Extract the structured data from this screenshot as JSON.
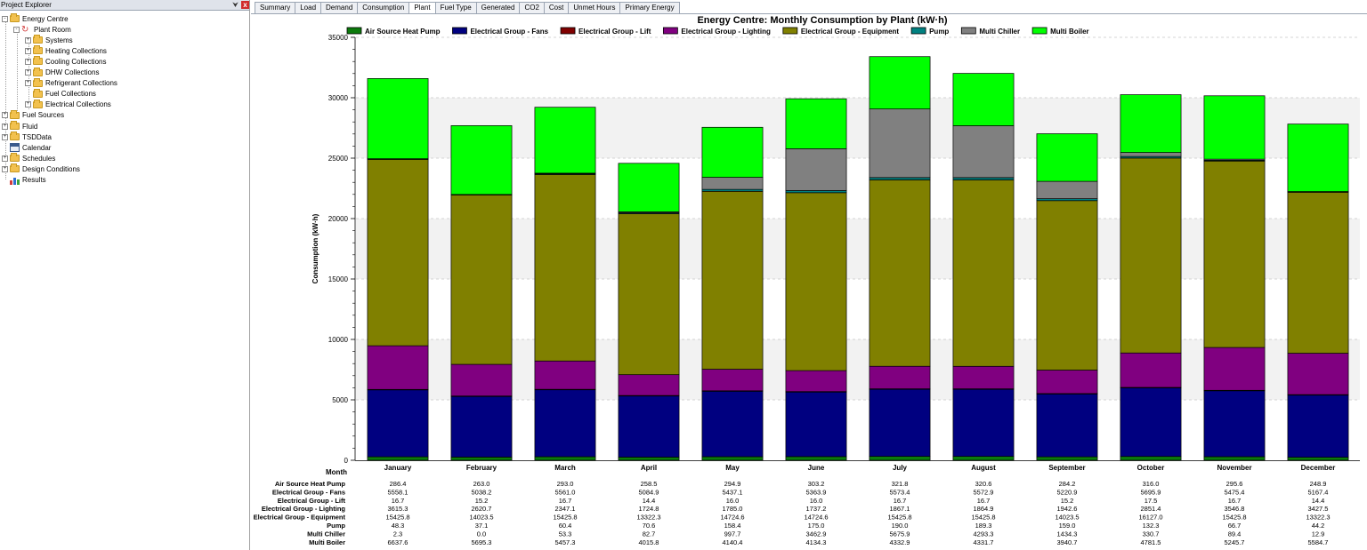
{
  "explorer": {
    "title": "Project Explorer",
    "pin_glyph": "⮟",
    "close_glyph": "x",
    "items": [
      {
        "label": "Energy Centre",
        "icon": "folder-icon",
        "depth": 0,
        "toggle": "-"
      },
      {
        "label": "Plant Room",
        "icon": "sync-icon",
        "depth": 1,
        "toggle": "-"
      },
      {
        "label": "Systems",
        "icon": "folder-icon",
        "depth": 2,
        "toggle": "+"
      },
      {
        "label": "Heating Collections",
        "icon": "folder-icon",
        "depth": 2,
        "toggle": "+"
      },
      {
        "label": "Cooling Collections",
        "icon": "folder-icon",
        "depth": 2,
        "toggle": "+"
      },
      {
        "label": "DHW Collections",
        "icon": "folder-icon",
        "depth": 2,
        "toggle": "+"
      },
      {
        "label": "Refrigerant Collections",
        "icon": "folder-icon",
        "depth": 2,
        "toggle": "+"
      },
      {
        "label": "Fuel Collections",
        "icon": "folder-icon",
        "depth": 2,
        "toggle": ""
      },
      {
        "label": "Electrical Collections",
        "icon": "folder-icon",
        "depth": 2,
        "toggle": "+"
      },
      {
        "label": "Fuel Sources",
        "icon": "folder-icon",
        "depth": 0,
        "toggle": "+"
      },
      {
        "label": "Fluid",
        "icon": "folder-icon",
        "depth": 0,
        "toggle": "+"
      },
      {
        "label": "TSDData",
        "icon": "folder-icon",
        "depth": 0,
        "toggle": "+"
      },
      {
        "label": "Calendar",
        "icon": "calendar-icon",
        "depth": 0,
        "toggle": ""
      },
      {
        "label": "Schedules",
        "icon": "folder-icon",
        "depth": 0,
        "toggle": "+"
      },
      {
        "label": "Design Conditions",
        "icon": "folder-icon",
        "depth": 0,
        "toggle": "+"
      },
      {
        "label": "Results",
        "icon": "results-icon",
        "depth": 0,
        "toggle": ""
      }
    ]
  },
  "tabs": [
    {
      "label": "Summary",
      "active": false
    },
    {
      "label": "Load",
      "active": false
    },
    {
      "label": "Demand",
      "active": false
    },
    {
      "label": "Consumption",
      "active": false
    },
    {
      "label": "Plant",
      "active": true
    },
    {
      "label": "Fuel Type",
      "active": false
    },
    {
      "label": "Generated",
      "active": false
    },
    {
      "label": "CO2",
      "active": false
    },
    {
      "label": "Cost",
      "active": false
    },
    {
      "label": "Unmet Hours",
      "active": false
    },
    {
      "label": "Primary Energy",
      "active": false
    }
  ],
  "chart_data": {
    "type": "bar",
    "stacked": true,
    "title": "Energy Centre: Monthly Consumption by Plant (kW·h)",
    "xlabel": "Month",
    "ylabel": "Consumption (kW·h)",
    "ylim": [
      0,
      35000
    ],
    "yticks": [
      0,
      5000,
      10000,
      15000,
      20000,
      25000,
      30000,
      35000
    ],
    "grid": "horizontal dashed",
    "legend": "top",
    "categories": [
      "January",
      "February",
      "March",
      "April",
      "May",
      "June",
      "July",
      "August",
      "September",
      "October",
      "November",
      "December"
    ],
    "series": [
      {
        "name": "Air Source Heat Pump",
        "color": "#0b7a0b",
        "values": [
          "286.4",
          "263.0",
          "293.0",
          "258.5",
          "294.9",
          "303.2",
          "321.8",
          "320.6",
          "284.2",
          "316.0",
          "295.6",
          "248.9"
        ]
      },
      {
        "name": "Electrical Group - Fans",
        "color": "#000080",
        "values": [
          "5558.1",
          "5038.2",
          "5561.0",
          "5084.9",
          "5437.1",
          "5363.9",
          "5573.4",
          "5572.9",
          "5220.9",
          "5695.9",
          "5475.4",
          "5167.4"
        ]
      },
      {
        "name": "Electrical Group - Lift",
        "color": "#800000",
        "values": [
          "16.7",
          "15.2",
          "16.7",
          "14.4",
          "16.0",
          "16.0",
          "16.7",
          "16.7",
          "15.2",
          "17.5",
          "16.7",
          "14.4"
        ]
      },
      {
        "name": "Electrical Group - Lighting",
        "color": "#800080",
        "values": [
          "3615.3",
          "2620.7",
          "2347.1",
          "1724.8",
          "1785.0",
          "1737.2",
          "1867.1",
          "1864.9",
          "1942.6",
          "2851.4",
          "3546.8",
          "3427.5"
        ]
      },
      {
        "name": "Electrical Group - Equipment",
        "color": "#808000",
        "values": [
          "15425.8",
          "14023.5",
          "15425.8",
          "13322.3",
          "14724.6",
          "14724.6",
          "15425.8",
          "15425.8",
          "14023.5",
          "16127.0",
          "15425.8",
          "13322.3"
        ]
      },
      {
        "name": "Pump",
        "color": "#008080",
        "values": [
          "48.3",
          "37.1",
          "60.4",
          "70.6",
          "158.4",
          "175.0",
          "190.0",
          "189.3",
          "159.0",
          "132.3",
          "66.7",
          "44.2"
        ]
      },
      {
        "name": "Multi Chiller",
        "color": "#808080",
        "values": [
          "2.3",
          "0.0",
          "53.3",
          "82.7",
          "997.7",
          "3462.9",
          "5675.9",
          "4293.3",
          "1434.3",
          "330.7",
          "89.4",
          "12.9"
        ]
      },
      {
        "name": "Multi Boiler",
        "color": "#00ff00",
        "values": [
          "6637.6",
          "5695.3",
          "5457.3",
          "4015.8",
          "4140.4",
          "4134.3",
          "4332.9",
          "4331.7",
          "3940.7",
          "4781.5",
          "5245.7",
          "5584.7"
        ]
      }
    ]
  }
}
